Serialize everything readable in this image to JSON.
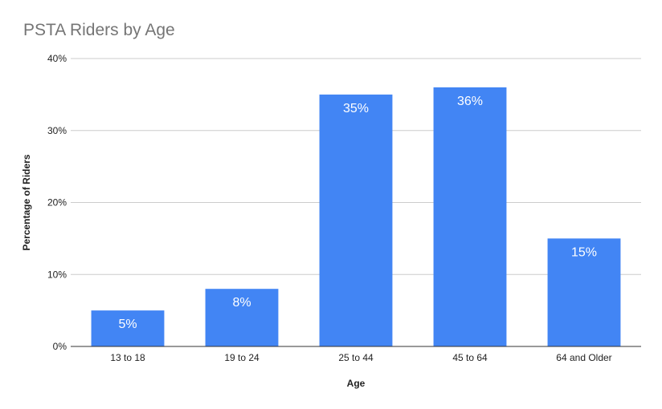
{
  "chart_data": {
    "type": "bar",
    "title": "PSTA Riders by Age",
    "xlabel": "Age",
    "ylabel": "Percentage of Riders",
    "categories": [
      "13 to 18",
      "19 to 24",
      "25 to 44",
      "45 to 64",
      "64 and Older"
    ],
    "values": [
      5,
      8,
      35,
      36,
      15
    ],
    "data_labels": [
      "5%",
      "8%",
      "35%",
      "36%",
      "15%"
    ],
    "ylim": [
      0,
      40
    ],
    "yticks": [
      0,
      10,
      20,
      30,
      40
    ],
    "ytick_labels": [
      "0%",
      "10%",
      "20%",
      "30%",
      "40%"
    ],
    "grid": true,
    "legend": "none",
    "colors": {
      "bar": "#4285f4",
      "grid": "#cccccc",
      "axis": "#333333"
    }
  }
}
